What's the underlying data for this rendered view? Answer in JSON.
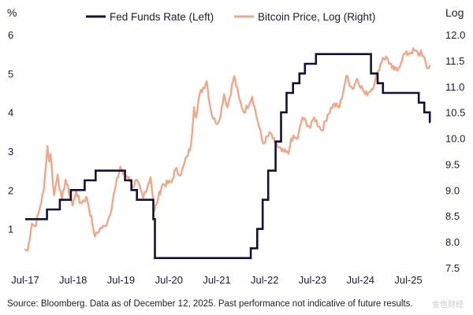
{
  "chart_data": {
    "type": "line",
    "title": "",
    "y_left_unit": "%",
    "y_right_unit": "Log",
    "y_left_ticks": [
      "1",
      "2",
      "3",
      "4",
      "5",
      "6"
    ],
    "y_right_ticks": [
      "7.5",
      "8.0",
      "8.5",
      "9.0",
      "9.5",
      "10.0",
      "10.5",
      "11.0",
      "11.5",
      "12.0"
    ],
    "x_ticks": [
      "Jul-17",
      "Jul-18",
      "Jul-19",
      "Jul-20",
      "Jul-21",
      "Jul-22",
      "Jul-23",
      "Jul-24",
      "Jul-25"
    ],
    "xlim": [
      "2017-07",
      "2025-12"
    ],
    "ylim_left": [
      0,
      6
    ],
    "ylim_right": [
      7.5,
      12.0
    ],
    "grid": false,
    "legend_position": "top",
    "series": [
      {
        "name": "Fed Funds Rate (Left)",
        "axis": "left",
        "color": "#13123a",
        "style": "step",
        "points": [
          [
            "2017-07-01",
            1.25
          ],
          [
            "2017-12-14",
            1.5
          ],
          [
            "2018-03-22",
            1.75
          ],
          [
            "2018-06-14",
            2.0
          ],
          [
            "2018-09-27",
            2.25
          ],
          [
            "2018-12-20",
            2.5
          ],
          [
            "2019-08-01",
            2.25
          ],
          [
            "2019-09-19",
            2.0
          ],
          [
            "2019-10-31",
            1.75
          ],
          [
            "2020-03-04",
            1.25
          ],
          [
            "2020-03-16",
            0.25
          ],
          [
            "2022-03-17",
            0.5
          ],
          [
            "2022-05-05",
            1.0
          ],
          [
            "2022-06-16",
            1.75
          ],
          [
            "2022-07-28",
            2.5
          ],
          [
            "2022-09-22",
            3.25
          ],
          [
            "2022-11-03",
            4.0
          ],
          [
            "2022-12-15",
            4.5
          ],
          [
            "2023-02-02",
            4.75
          ],
          [
            "2023-03-23",
            5.0
          ],
          [
            "2023-05-04",
            5.25
          ],
          [
            "2023-07-27",
            5.5
          ],
          [
            "2024-09-19",
            5.0
          ],
          [
            "2024-11-08",
            4.75
          ],
          [
            "2024-12-19",
            4.5
          ],
          [
            "2025-09-18",
            4.25
          ],
          [
            "2025-10-30",
            4.0
          ],
          [
            "2025-12-11",
            3.75
          ]
        ]
      },
      {
        "name": "Bitcoin Price, Log (Right)",
        "axis": "right",
        "color": "#f2a788",
        "style": "line",
        "points": [
          [
            "2017-07-01",
            7.85
          ],
          [
            "2017-07-20",
            7.83
          ],
          [
            "2017-08-20",
            8.35
          ],
          [
            "2017-09-15",
            8.3
          ],
          [
            "2017-10-15",
            8.6
          ],
          [
            "2017-11-20",
            9.0
          ],
          [
            "2017-12-17",
            9.85
          ],
          [
            "2017-12-30",
            9.55
          ],
          [
            "2018-01-10",
            9.7
          ],
          [
            "2018-02-06",
            8.9
          ],
          [
            "2018-03-05",
            9.3
          ],
          [
            "2018-04-06",
            8.8
          ],
          [
            "2018-05-05",
            9.2
          ],
          [
            "2018-06-28",
            8.7
          ],
          [
            "2018-07-25",
            9.0
          ],
          [
            "2018-08-20",
            8.75
          ],
          [
            "2018-10-15",
            8.85
          ],
          [
            "2018-11-25",
            8.35
          ],
          [
            "2018-12-15",
            8.1
          ],
          [
            "2019-01-20",
            8.25
          ],
          [
            "2019-03-01",
            8.3
          ],
          [
            "2019-04-05",
            8.5
          ],
          [
            "2019-05-15",
            9.0
          ],
          [
            "2019-06-26",
            9.45
          ],
          [
            "2019-07-20",
            9.3
          ],
          [
            "2019-09-01",
            9.25
          ],
          [
            "2019-10-01",
            9.05
          ],
          [
            "2019-10-26",
            9.2
          ],
          [
            "2019-12-17",
            8.85
          ],
          [
            "2020-02-12",
            9.25
          ],
          [
            "2020-03-12",
            8.6
          ],
          [
            "2020-04-10",
            8.85
          ],
          [
            "2020-05-10",
            9.1
          ],
          [
            "2020-07-20",
            9.15
          ],
          [
            "2020-08-20",
            9.4
          ],
          [
            "2020-10-01",
            9.3
          ],
          [
            "2020-11-15",
            9.65
          ],
          [
            "2020-12-15",
            9.85
          ],
          [
            "2021-01-08",
            10.6
          ],
          [
            "2021-01-25",
            10.4
          ],
          [
            "2021-02-20",
            10.85
          ],
          [
            "2021-04-14",
            11.1
          ],
          [
            "2021-05-19",
            10.5
          ],
          [
            "2021-06-22",
            10.3
          ],
          [
            "2021-07-20",
            10.35
          ],
          [
            "2021-08-25",
            10.85
          ],
          [
            "2021-09-21",
            10.6
          ],
          [
            "2021-11-10",
            11.2
          ],
          [
            "2021-12-20",
            10.75
          ],
          [
            "2022-01-24",
            10.5
          ],
          [
            "2022-03-28",
            10.8
          ],
          [
            "2022-05-12",
            10.3
          ],
          [
            "2022-06-18",
            9.9
          ],
          [
            "2022-08-15",
            10.1
          ],
          [
            "2022-09-20",
            9.9
          ],
          [
            "2022-11-09",
            9.75
          ],
          [
            "2022-12-30",
            9.7
          ],
          [
            "2023-01-20",
            10.0
          ],
          [
            "2023-03-10",
            10.0
          ],
          [
            "2023-04-14",
            10.4
          ],
          [
            "2023-06-15",
            10.2
          ],
          [
            "2023-07-13",
            10.4
          ],
          [
            "2023-09-11",
            10.15
          ],
          [
            "2023-10-24",
            10.45
          ],
          [
            "2023-12-05",
            10.65
          ],
          [
            "2024-01-23",
            10.6
          ],
          [
            "2024-02-28",
            11.0
          ],
          [
            "2024-03-14",
            11.2
          ],
          [
            "2024-05-01",
            10.95
          ],
          [
            "2024-06-05",
            11.15
          ],
          [
            "2024-08-05",
            10.85
          ],
          [
            "2024-09-06",
            10.9
          ],
          [
            "2024-10-15",
            11.05
          ],
          [
            "2024-11-12",
            11.3
          ],
          [
            "2024-12-17",
            11.55
          ],
          [
            "2025-01-20",
            11.55
          ],
          [
            "2025-02-27",
            11.35
          ],
          [
            "2025-04-08",
            11.3
          ],
          [
            "2025-05-22",
            11.6
          ],
          [
            "2025-07-14",
            11.65
          ],
          [
            "2025-08-14",
            11.7
          ],
          [
            "2025-09-25",
            11.6
          ],
          [
            "2025-10-06",
            11.7
          ],
          [
            "2025-11-21",
            11.35
          ],
          [
            "2025-12-12",
            11.4
          ]
        ]
      }
    ]
  },
  "source_note": "Source: Bloomberg. Data as of December 12, 2025. Past performance not indicative of future results.",
  "watermark": "金色财经"
}
